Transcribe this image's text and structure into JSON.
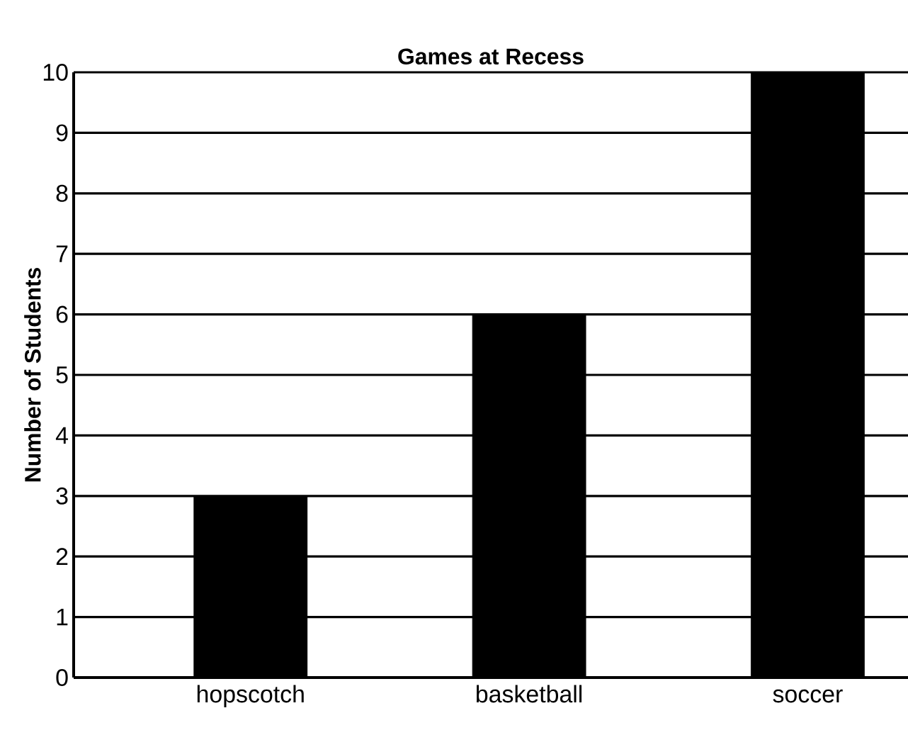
{
  "chart_data": {
    "type": "bar",
    "title": "Games at Recess",
    "ylabel": "Number of Students",
    "categories": [
      "hopscotch",
      "basketball",
      "soccer"
    ],
    "values": [
      3,
      6,
      10
    ],
    "color": "#000000",
    "ylim": [
      0,
      10
    ],
    "yticks": [
      0,
      1,
      2,
      3,
      4,
      5,
      6,
      7,
      8,
      9,
      10
    ],
    "grid": "y"
  }
}
